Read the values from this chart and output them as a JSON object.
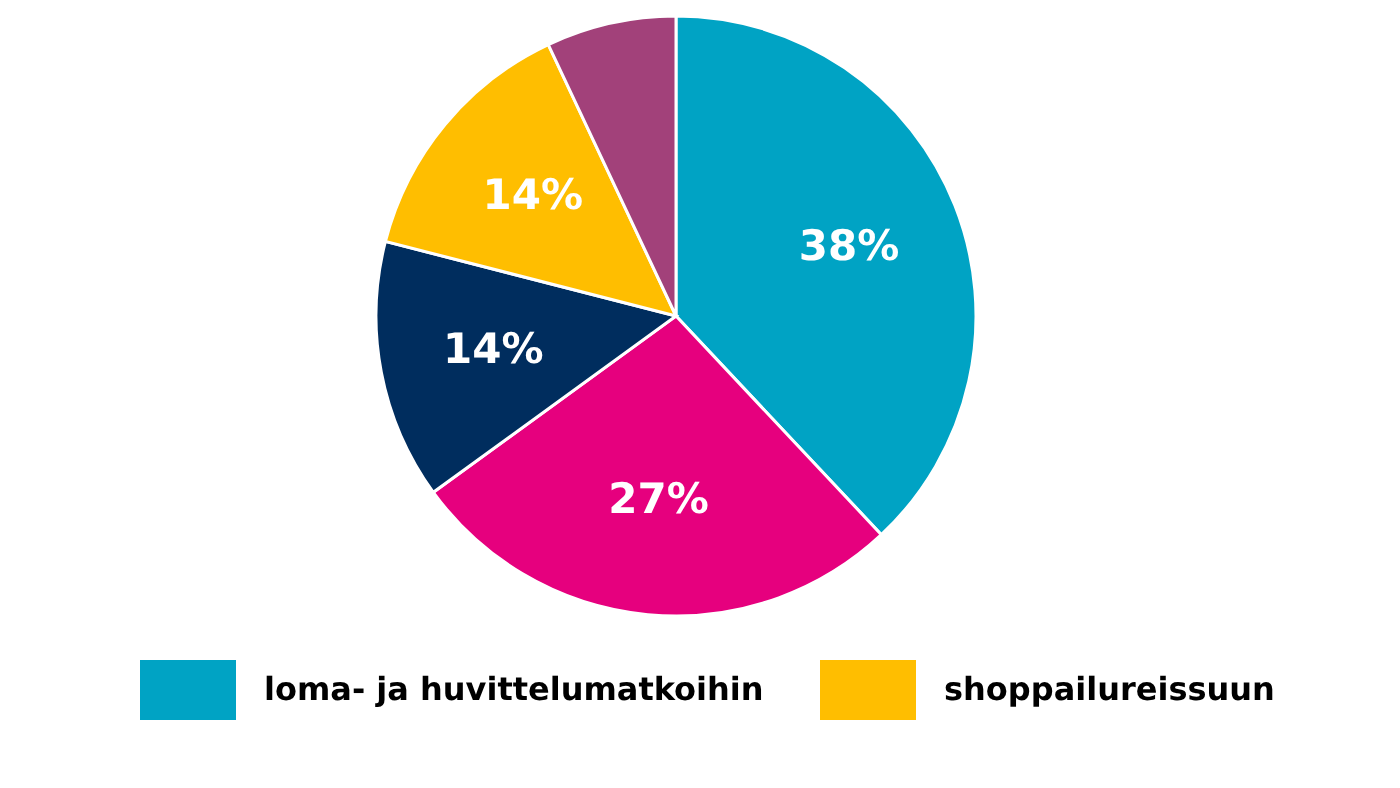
{
  "chart_data": {
    "type": "pie",
    "categories": [
      "loma- ja huvittelumatkoihin",
      null,
      null,
      "shoppailureissuun",
      null
    ],
    "values": [
      38,
      27,
      14,
      14,
      7
    ],
    "colors": [
      "#00a3c4",
      "#e6007e",
      "#002d5e",
      "#ffbe00",
      "#a2417a"
    ],
    "value_labels": [
      "38%",
      "27%",
      "14%",
      "14%",
      null
    ],
    "legend": "bottom"
  }
}
